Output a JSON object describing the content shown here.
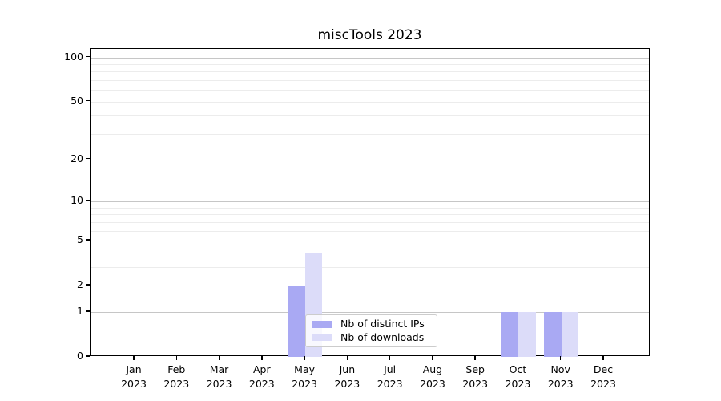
{
  "title": "miscTools 2023",
  "chart_data": {
    "type": "bar",
    "title": "miscTools 2023",
    "categories": [
      "Jan",
      "Feb",
      "Mar",
      "Apr",
      "May",
      "Jun",
      "Jul",
      "Aug",
      "Sep",
      "Oct",
      "Nov",
      "Dec"
    ],
    "category_year": "2023",
    "series": [
      {
        "name": "Nb of distinct IPs",
        "color": "#a9a9f3",
        "values": [
          0,
          0,
          0,
          0,
          2,
          0,
          0,
          0,
          0,
          1,
          1,
          0
        ]
      },
      {
        "name": "Nb of downloads",
        "color": "#dcdcf9",
        "values": [
          0,
          0,
          0,
          0,
          4,
          0,
          0,
          0,
          0,
          1,
          1,
          0
        ]
      }
    ],
    "xlabel": "",
    "ylabel": "",
    "y_axis": {
      "scale": "log1p",
      "tick_labels": [
        0,
        1,
        2,
        5,
        10,
        20,
        50,
        100
      ],
      "major_gridlines": [
        1,
        10,
        100
      ],
      "minor_gridlines": [
        2,
        3,
        4,
        5,
        6,
        7,
        8,
        9,
        20,
        30,
        40,
        50,
        60,
        70,
        80,
        90
      ],
      "ylim": [
        0,
        114
      ]
    },
    "legend": {
      "position": "lower-center",
      "entries": [
        "Nb of distinct IPs",
        "Nb of downloads"
      ]
    },
    "colors": {
      "grid_major": "#c6c6c6",
      "grid_minor": "#ececec",
      "spine": "#000000",
      "background": "#ffffff"
    },
    "grid": true
  }
}
